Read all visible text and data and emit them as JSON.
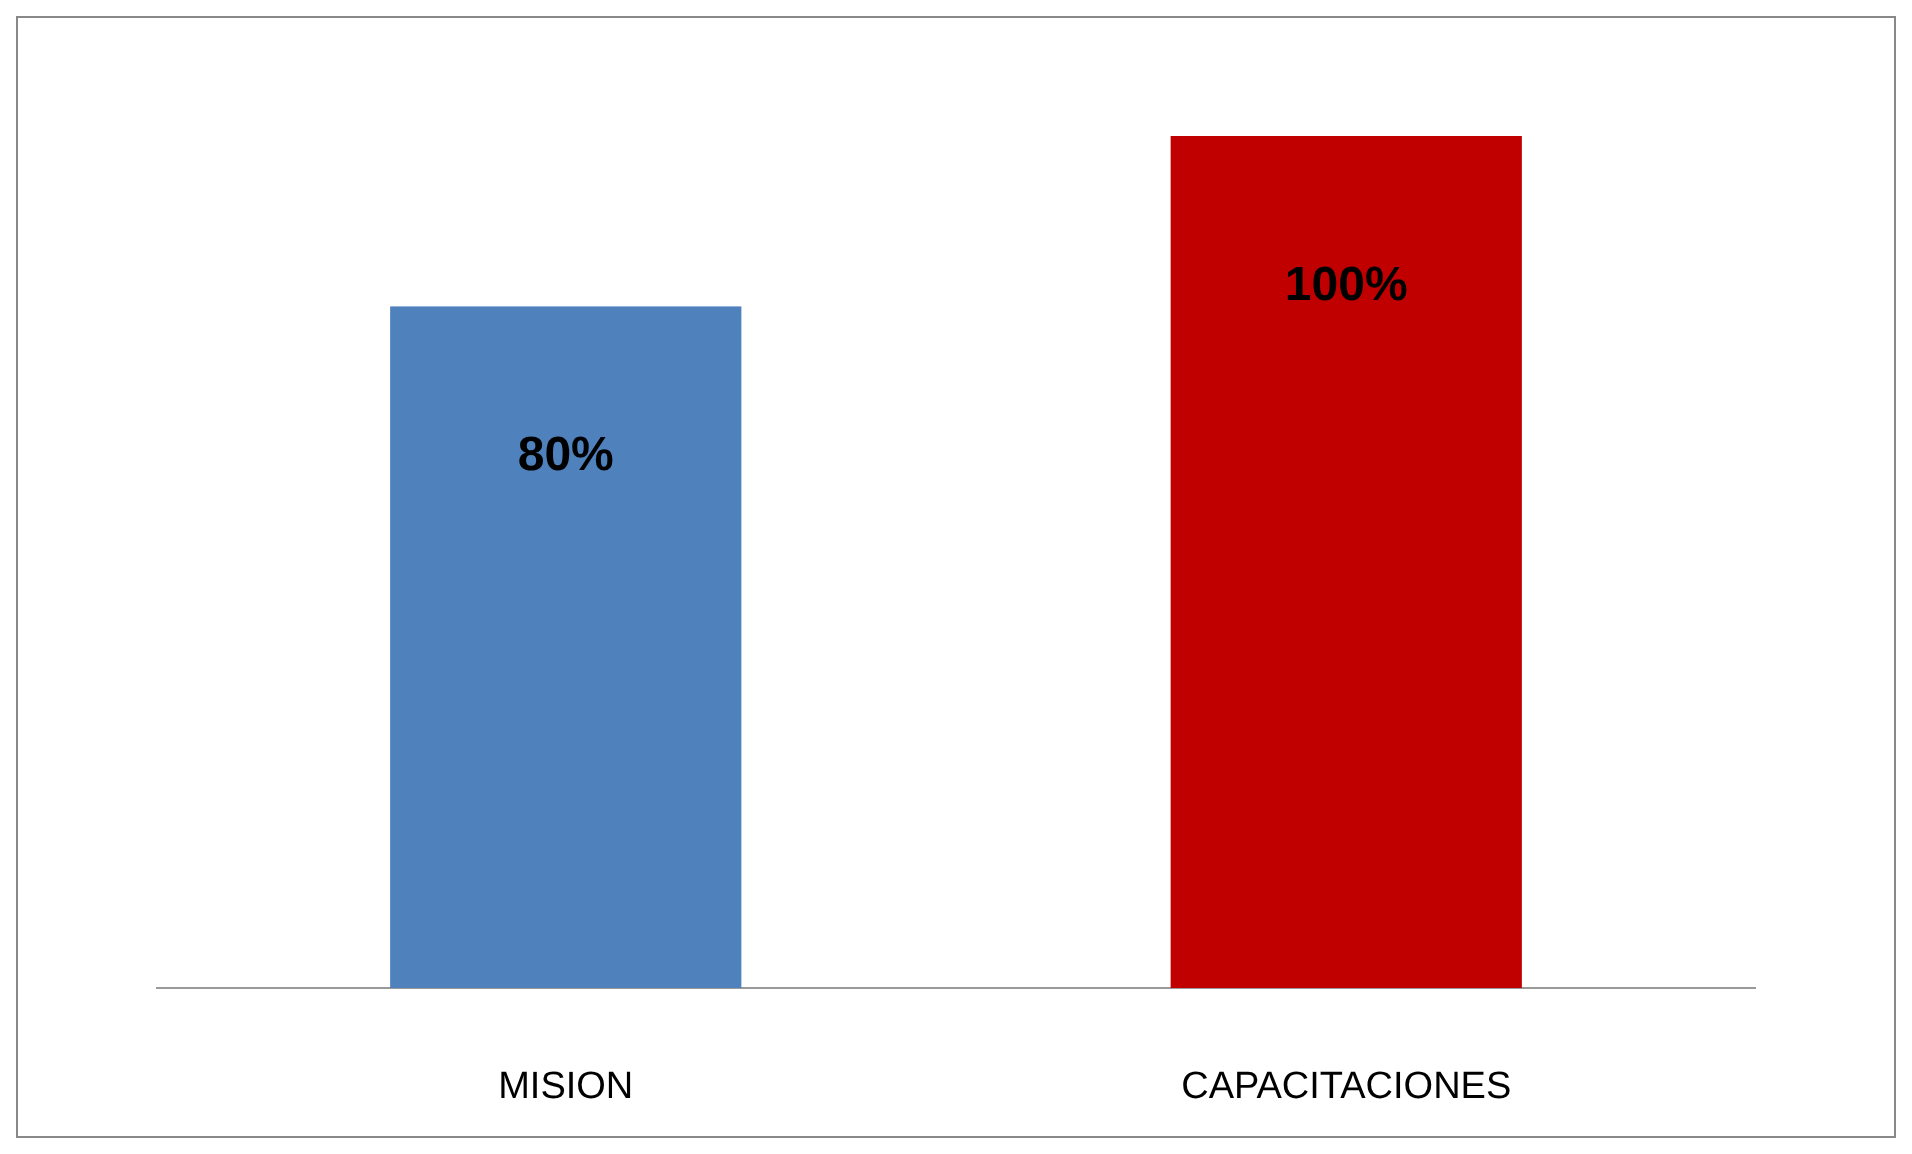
{
  "chart_data": {
    "type": "bar",
    "categories": [
      "MISION",
      "CAPACITACIONES"
    ],
    "values": [
      80,
      100
    ],
    "colors": [
      "#4f81bd",
      "#c00000"
    ],
    "value_labels": [
      "80%",
      "100%"
    ]
  }
}
